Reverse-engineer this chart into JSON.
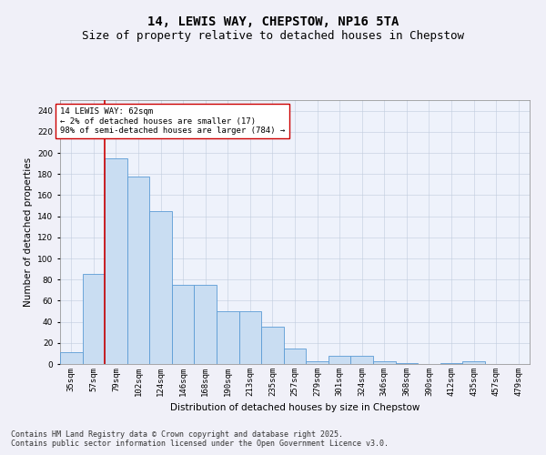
{
  "title1": "14, LEWIS WAY, CHEPSTOW, NP16 5TA",
  "title2": "Size of property relative to detached houses in Chepstow",
  "xlabel": "Distribution of detached houses by size in Chepstow",
  "ylabel": "Number of detached properties",
  "categories": [
    "35sqm",
    "57sqm",
    "79sqm",
    "102sqm",
    "124sqm",
    "146sqm",
    "168sqm",
    "190sqm",
    "213sqm",
    "235sqm",
    "257sqm",
    "279sqm",
    "301sqm",
    "324sqm",
    "346sqm",
    "368sqm",
    "390sqm",
    "412sqm",
    "435sqm",
    "457sqm",
    "479sqm"
  ],
  "values": [
    11,
    85,
    195,
    178,
    145,
    75,
    75,
    50,
    50,
    35,
    15,
    3,
    8,
    8,
    3,
    1,
    0,
    1,
    3,
    0,
    0
  ],
  "bar_color": "#c9ddf2",
  "bar_edge_color": "#5b9bd5",
  "vline_color": "#cc0000",
  "vline_pos": 1.5,
  "annotation_text": "14 LEWIS WAY: 62sqm\n← 2% of detached houses are smaller (17)\n98% of semi-detached houses are larger (784) →",
  "annotation_box_color": "#ffffff",
  "annotation_box_edge": "#cc0000",
  "ylim": [
    0,
    250
  ],
  "yticks": [
    0,
    20,
    40,
    60,
    80,
    100,
    120,
    140,
    160,
    180,
    200,
    220,
    240
  ],
  "bg_color": "#e8eef8",
  "plot_bg": "#eef2fb",
  "footer": "Contains HM Land Registry data © Crown copyright and database right 2025.\nContains public sector information licensed under the Open Government Licence v3.0.",
  "title_fontsize": 10,
  "subtitle_fontsize": 9,
  "axis_label_fontsize": 7.5,
  "tick_fontsize": 6.5,
  "footer_fontsize": 6,
  "annot_fontsize": 6.5
}
